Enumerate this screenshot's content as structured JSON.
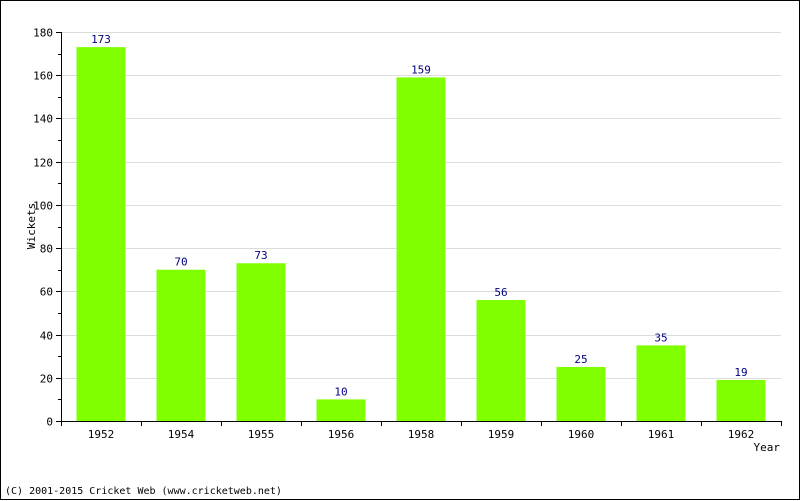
{
  "chart_data": {
    "type": "bar",
    "categories": [
      "1952",
      "1954",
      "1955",
      "1956",
      "1958",
      "1959",
      "1960",
      "1961",
      "1962"
    ],
    "values": [
      173,
      70,
      73,
      10,
      159,
      56,
      25,
      35,
      19
    ],
    "xlabel": "Year",
    "ylabel": "Wickets",
    "ylim": [
      0,
      180
    ],
    "yticks": [
      0,
      20,
      40,
      60,
      80,
      100,
      120,
      140,
      160,
      180
    ],
    "grid": true,
    "data_labels": true,
    "bar_color": "#80ff00",
    "label_color": "#000080"
  },
  "footer": {
    "copyright": "(C) 2001-2015 Cricket Web (www.cricketweb.net)"
  }
}
